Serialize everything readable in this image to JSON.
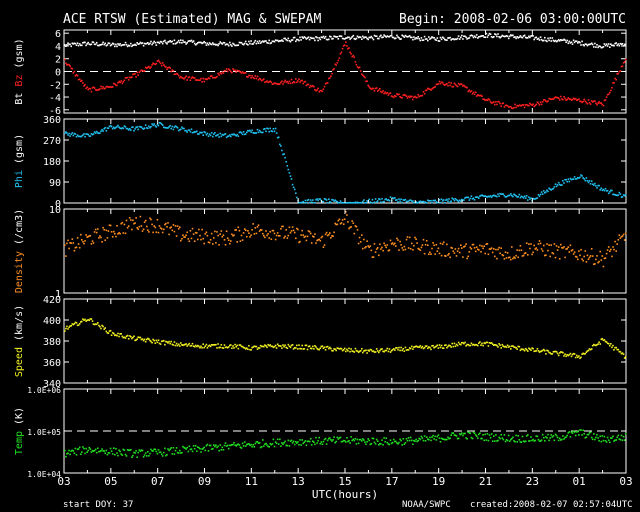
{
  "title": "ACE RTSW (Estimated) MAG & SWEPAM",
  "begin": "Begin: 2008-02-06 03:00:00UTC",
  "xlabel": "UTC(hours)",
  "start_doy": "start DOY:  37",
  "credit": "NOAA/SWPC",
  "created": "created:2008-02-07 02:57:04UTC",
  "colors": {
    "bt": "#ffffff",
    "bz": "#ff2020",
    "phi": "#20c0f0",
    "density": "#ff9020",
    "speed": "#f0f020",
    "temp": "#20e020",
    "frame": "#ffffff"
  },
  "chart_data": [
    {
      "type": "scatter",
      "panel": "mag",
      "ylabel_parts": [
        "Bt",
        "Bz",
        "(gsm)"
      ],
      "ylim": [
        -6.5,
        6.5
      ],
      "yticks": [
        "6",
        "4",
        "2",
        "0",
        "-2",
        "-4",
        "-6"
      ],
      "reference_line": 0,
      "x_hours": [
        0,
        1,
        2,
        3,
        4,
        5,
        6,
        7,
        8,
        9,
        10,
        11,
        12,
        13,
        14,
        15,
        16,
        17,
        18,
        19,
        20,
        21,
        22,
        23,
        24
      ],
      "series": [
        {
          "name": "Bt",
          "values": [
            4.2,
            4.5,
            4.3,
            4.4,
            4.6,
            4.8,
            4.5,
            4.4,
            4.6,
            4.9,
            5.2,
            5.3,
            5.5,
            5.4,
            5.6,
            5.3,
            5.2,
            5.5,
            5.8,
            5.6,
            5.4,
            5.0,
            4.6,
            4.1,
            4.5
          ]
        },
        {
          "name": "Bz",
          "values": [
            1.8,
            -2.8,
            -2.2,
            -0.5,
            1.6,
            -0.8,
            -1.3,
            0.4,
            -0.6,
            -1.8,
            -1.2,
            -3.1,
            4.6,
            -2.3,
            -3.6,
            -4.0,
            -1.6,
            -2.2,
            -4.4,
            -5.4,
            -5.1,
            -4.0,
            -4.4,
            -5.0,
            2.6
          ]
        }
      ]
    },
    {
      "type": "scatter",
      "panel": "phi",
      "ylabel_parts": [
        "Phi",
        "(gsm)"
      ],
      "ylim": [
        0,
        360
      ],
      "yticks": [
        "360",
        "270",
        "180",
        "90",
        "0"
      ],
      "x_hours": [
        0,
        1,
        2,
        3,
        4,
        5,
        6,
        7,
        8,
        9,
        10,
        11,
        12,
        13,
        14,
        15,
        16,
        17,
        18,
        19,
        20,
        21,
        22,
        23,
        24
      ],
      "series": [
        {
          "name": "Phi",
          "values": [
            300,
            290,
            330,
            320,
            340,
            320,
            300,
            290,
            310,
            320,
            5,
            15,
            0,
            10,
            20,
            5,
            10,
            20,
            30,
            40,
            20,
            80,
            120,
            60,
            30
          ]
        }
      ]
    },
    {
      "type": "scatter",
      "panel": "density",
      "ylabel_parts": [
        "Density",
        "(/cm3)"
      ],
      "scale": "log",
      "ylim": [
        1,
        10
      ],
      "yticks": [
        "10",
        "1"
      ],
      "x_hours": [
        0,
        1,
        2,
        3,
        4,
        5,
        6,
        7,
        8,
        9,
        10,
        11,
        12,
        13,
        14,
        15,
        16,
        17,
        18,
        19,
        20,
        21,
        22,
        23,
        24
      ],
      "series": [
        {
          "name": "Density",
          "values": [
            3.4,
            4.5,
            5.5,
            7.0,
            6.5,
            5.0,
            4.8,
            4.6,
            5.8,
            5.4,
            5.0,
            4.2,
            8.0,
            3.2,
            4.0,
            3.8,
            3.4,
            3.2,
            3.4,
            3.0,
            3.6,
            3.2,
            3.0,
            2.6,
            5.0
          ]
        }
      ]
    },
    {
      "type": "scatter",
      "panel": "speed",
      "ylabel_parts": [
        "Speed",
        "(km/s)"
      ],
      "ylim": [
        340,
        420
      ],
      "yticks": [
        "420",
        "400",
        "380",
        "360",
        "340"
      ],
      "x_hours": [
        0,
        1,
        2,
        3,
        4,
        5,
        6,
        7,
        8,
        9,
        10,
        11,
        12,
        13,
        14,
        15,
        16,
        17,
        18,
        19,
        20,
        21,
        22,
        23,
        24
      ],
      "series": [
        {
          "name": "Speed",
          "values": [
            392,
            402,
            388,
            383,
            380,
            377,
            376,
            376,
            374,
            376,
            375,
            374,
            372,
            371,
            372,
            374,
            375,
            378,
            378,
            375,
            372,
            369,
            366,
            382,
            365
          ]
        }
      ]
    },
    {
      "type": "scatter",
      "panel": "temp",
      "ylabel_parts": [
        "Temp",
        "(K)"
      ],
      "scale": "log",
      "ylim": [
        10000,
        1000000
      ],
      "yticks": [
        "1.0E+06",
        "1.0E+05",
        "1.0E+04"
      ],
      "reference_line": 100000,
      "x_hours": [
        0,
        1,
        2,
        3,
        4,
        5,
        6,
        7,
        8,
        9,
        10,
        11,
        12,
        13,
        14,
        15,
        16,
        17,
        18,
        19,
        20,
        21,
        22,
        23,
        24
      ],
      "series": [
        {
          "name": "Temp",
          "values": [
            30000,
            38000,
            34000,
            30000,
            32000,
            36000,
            40000,
            45000,
            50000,
            55000,
            58000,
            60000,
            62000,
            60000,
            58000,
            62000,
            70000,
            85000,
            75000,
            70000,
            68000,
            72000,
            95000,
            65000,
            75000
          ]
        }
      ]
    }
  ],
  "x_axis": {
    "min": 0,
    "max": 24,
    "tick_labels": [
      "03",
      "05",
      "07",
      "09",
      "11",
      "13",
      "15",
      "17",
      "19",
      "21",
      "23",
      "01",
      "03"
    ]
  }
}
